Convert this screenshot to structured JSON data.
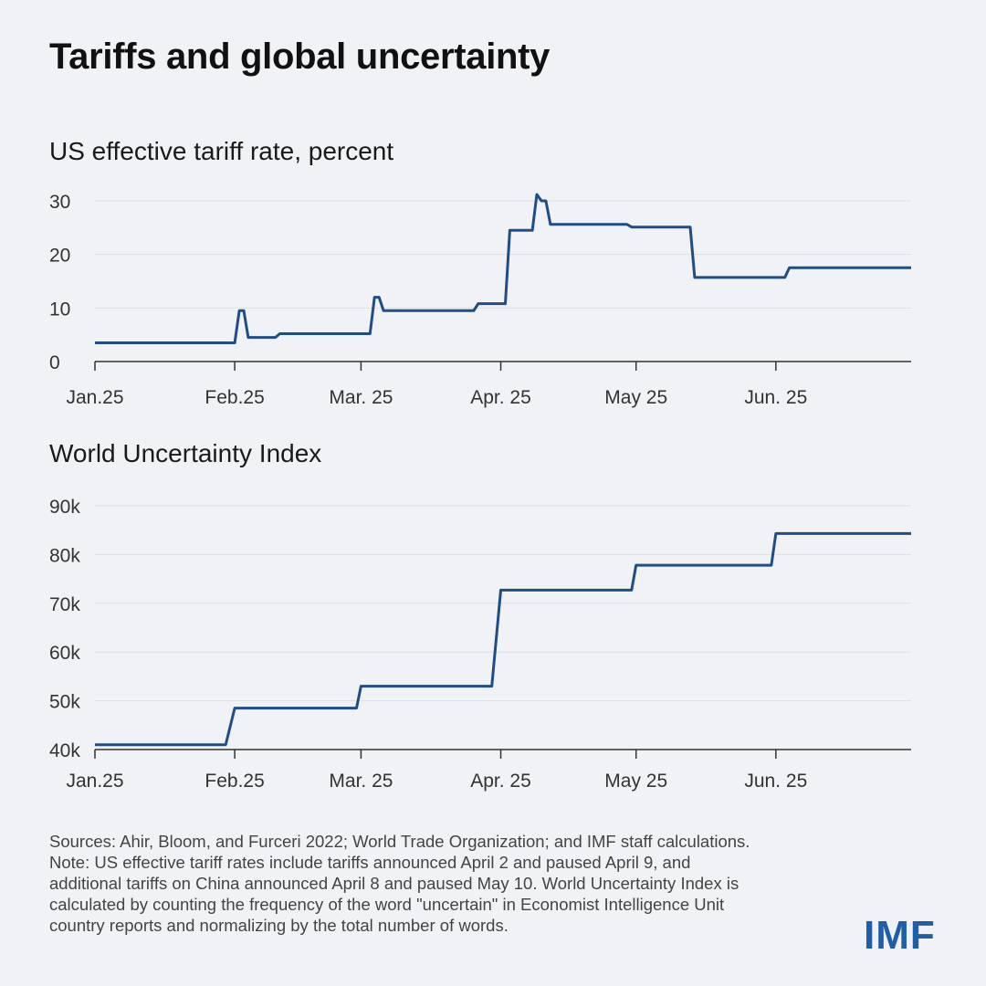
{
  "title": "Tariffs and global uncertainty",
  "notes": [
    "Sources: Ahir, Bloom, and Furceri 2022; World Trade Organization; and IMF staff calculations.",
    "Note: US effective tariff rates include tariffs announced April 2 and paused April 9, and",
    "additional tariffs on China announced April 8 and paused May 10. World Uncertainty Index is",
    "calculated by counting the frequency of the word \"uncertain\" in Economist Intelligence Unit",
    "country reports and normalizing by the total number of words."
  ],
  "logo": "IMF",
  "line_color": "#1f4e87",
  "chart_data": [
    {
      "type": "line",
      "title": "US effective tariff rate, percent",
      "xlabel": "",
      "ylabel": "",
      "x_ticks": [
        {
          "label": "Jan.25",
          "date": "2025-01-01"
        },
        {
          "label": "Feb.25",
          "date": "2025-02-01"
        },
        {
          "label": "Mar. 25",
          "date": "2025-03-01"
        },
        {
          "label": "Apr. 25",
          "date": "2025-04-01"
        },
        {
          "label": "May 25",
          "date": "2025-05-01"
        },
        {
          "label": "Jun. 25",
          "date": "2025-06-01"
        }
      ],
      "xlim": [
        "2025-01-01",
        "2025-07-01"
      ],
      "y_ticks": [
        {
          "label": "0",
          "value": 0
        },
        {
          "label": "10",
          "value": 10
        },
        {
          "label": "20",
          "value": 20
        },
        {
          "label": "30",
          "value": 30
        }
      ],
      "ylim": [
        0,
        30
      ],
      "grid": true,
      "series": [
        {
          "points": [
            {
              "x": "2025-01-01",
              "y": 3.5
            },
            {
              "x": "2025-02-01",
              "y": 3.5
            },
            {
              "x": "2025-02-02",
              "y": 9.5
            },
            {
              "x": "2025-02-03",
              "y": 9.5
            },
            {
              "x": "2025-02-04",
              "y": 4.5
            },
            {
              "x": "2025-02-10",
              "y": 4.5
            },
            {
              "x": "2025-02-11",
              "y": 5.2
            },
            {
              "x": "2025-03-03",
              "y": 5.2
            },
            {
              "x": "2025-03-04",
              "y": 12
            },
            {
              "x": "2025-03-05",
              "y": 12
            },
            {
              "x": "2025-03-06",
              "y": 9.5
            },
            {
              "x": "2025-03-26",
              "y": 9.5
            },
            {
              "x": "2025-03-27",
              "y": 10.8
            },
            {
              "x": "2025-04-02",
              "y": 10.8
            },
            {
              "x": "2025-04-03",
              "y": 24.5
            },
            {
              "x": "2025-04-08",
              "y": 24.5
            },
            {
              "x": "2025-04-09",
              "y": 31.2
            },
            {
              "x": "2025-04-10",
              "y": 30
            },
            {
              "x": "2025-04-11",
              "y": 30
            },
            {
              "x": "2025-04-12",
              "y": 25.6
            },
            {
              "x": "2025-04-29",
              "y": 25.6
            },
            {
              "x": "2025-04-30",
              "y": 25.1
            },
            {
              "x": "2025-05-13",
              "y": 25.1
            },
            {
              "x": "2025-05-14",
              "y": 15.7
            },
            {
              "x": "2025-06-03",
              "y": 15.7
            },
            {
              "x": "2025-06-04",
              "y": 17.5
            },
            {
              "x": "2025-07-01",
              "y": 17.5
            }
          ]
        }
      ]
    },
    {
      "type": "line",
      "title": "World Uncertainty Index",
      "xlabel": "",
      "ylabel": "",
      "x_ticks": [
        {
          "label": "Jan.25",
          "date": "2025-01-01"
        },
        {
          "label": "Feb.25",
          "date": "2025-02-01"
        },
        {
          "label": "Mar. 25",
          "date": "2025-03-01"
        },
        {
          "label": "Apr. 25",
          "date": "2025-04-01"
        },
        {
          "label": "May 25",
          "date": "2025-05-01"
        },
        {
          "label": "Jun. 25",
          "date": "2025-06-01"
        }
      ],
      "xlim": [
        "2025-01-01",
        "2025-07-01"
      ],
      "y_ticks": [
        {
          "label": "40k",
          "value": 40000
        },
        {
          "label": "50k",
          "value": 50000
        },
        {
          "label": "60k",
          "value": 60000
        },
        {
          "label": "70k",
          "value": 70000
        },
        {
          "label": "80k",
          "value": 80000
        },
        {
          "label": "90k",
          "value": 90000
        }
      ],
      "ylim": [
        40000,
        90000
      ],
      "grid": true,
      "series": [
        {
          "points": [
            {
              "x": "2025-01-01",
              "y": 41000
            },
            {
              "x": "2025-01-30",
              "y": 41000
            },
            {
              "x": "2025-02-01",
              "y": 48500
            },
            {
              "x": "2025-02-28",
              "y": 48500
            },
            {
              "x": "2025-03-01",
              "y": 53000
            },
            {
              "x": "2025-03-30",
              "y": 53000
            },
            {
              "x": "2025-04-01",
              "y": 72700
            },
            {
              "x": "2025-04-30",
              "y": 72700
            },
            {
              "x": "2025-05-01",
              "y": 77800
            },
            {
              "x": "2025-05-31",
              "y": 77800
            },
            {
              "x": "2025-06-01",
              "y": 84300
            },
            {
              "x": "2025-07-01",
              "y": 84300
            }
          ]
        }
      ]
    }
  ]
}
